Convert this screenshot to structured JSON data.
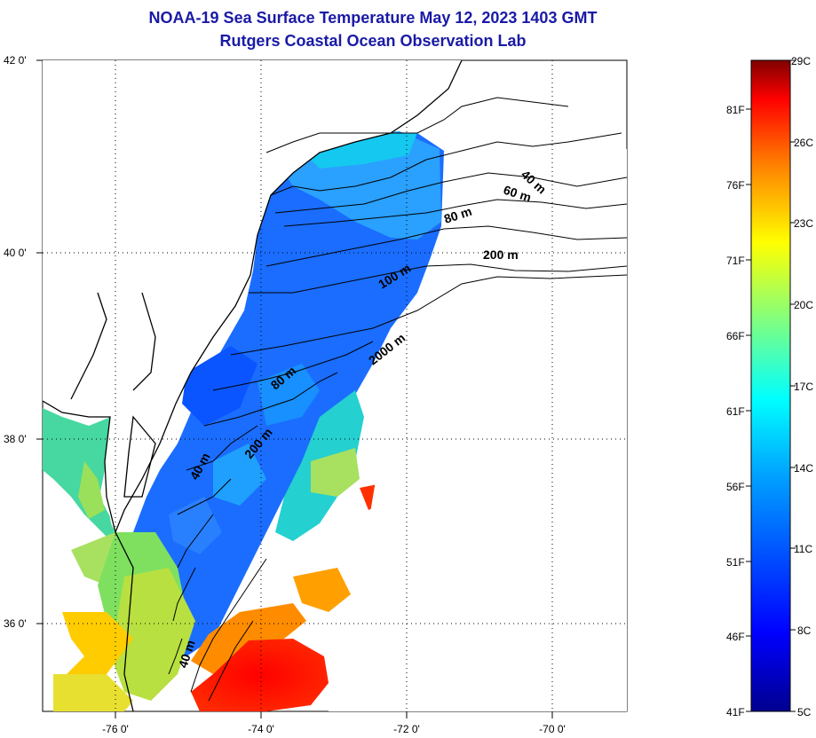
{
  "title": {
    "line1": "NOAA-19 Sea Surface Temperature May 12, 2023 1403 GMT",
    "line2": "Rutgers Coastal Ocean Observation Lab"
  },
  "map": {
    "lat_labels": [
      "42 0'",
      "40 0'",
      "38 0'",
      "36 0'"
    ],
    "lon_labels": [
      "-76 0'",
      "-74 0'",
      "-72 0'",
      "-70 0'"
    ],
    "contour_labels": [
      "40 m",
      "60 m",
      "80 m",
      "200 m",
      "100 m",
      "2000 m",
      "80 m",
      "200 m",
      "40 m",
      "40 m"
    ]
  },
  "colorbar": {
    "fahrenheit_labels": [
      "81F",
      "76F",
      "71F",
      "66F",
      "61F",
      "56F",
      "51F",
      "46F",
      "41F"
    ],
    "celsius_labels": [
      "29C",
      "26C",
      "23C",
      "20C",
      "17C",
      "14C",
      "11C",
      "8C",
      "5C"
    ],
    "colors": [
      "#00008f",
      "#0000ff",
      "#0080ff",
      "#00ffff",
      "#80ff80",
      "#ffff00",
      "#ff8000",
      "#ff0000",
      "#800000"
    ]
  },
  "colors": {
    "title": "#1a1aa6",
    "land": "#ffffff",
    "coast": "#000000"
  }
}
